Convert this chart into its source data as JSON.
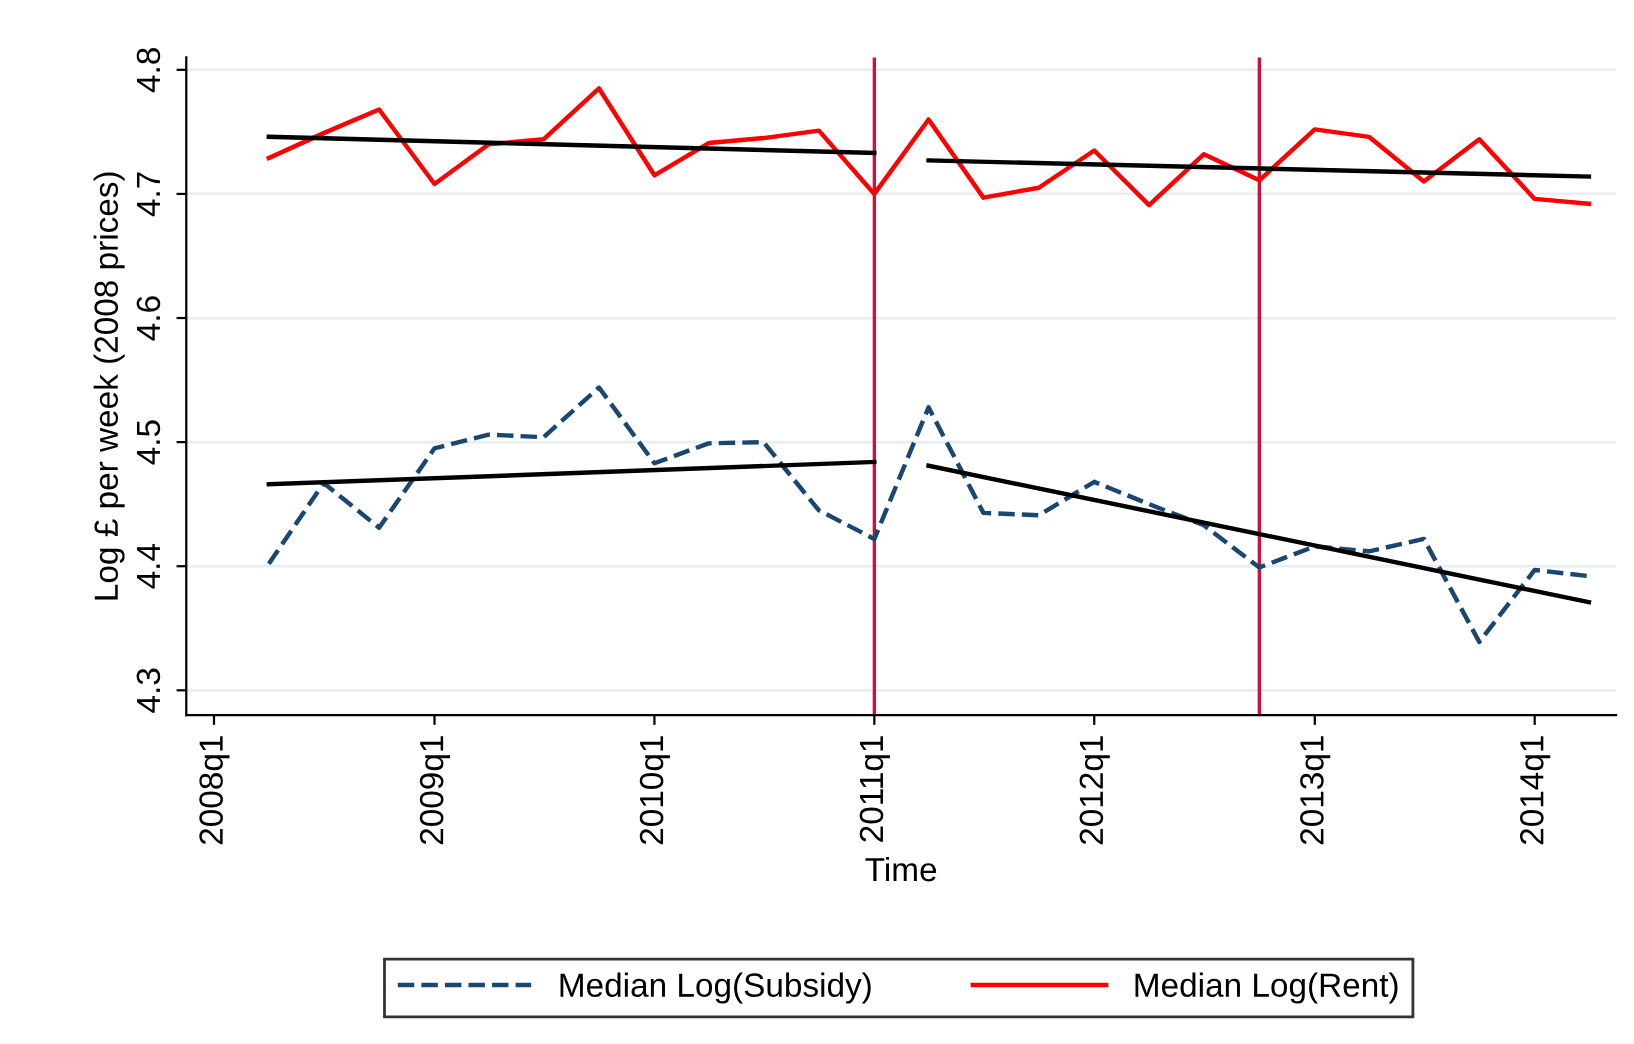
{
  "chart_data": {
    "type": "line",
    "xlabel": "Time",
    "ylabel": "Log £ per week (2008 prices)",
    "x": [
      "2008-04",
      "2008-07",
      "2008-10",
      "2009-01",
      "2009-04",
      "2009-07",
      "2009-10",
      "2010-01",
      "2010-04",
      "2010-07",
      "2010-10",
      "2011-01",
      "2011-04",
      "2011-07",
      "2011-10",
      "2012-01",
      "2012-04",
      "2012-07",
      "2012-10",
      "2013-01",
      "2013-04",
      "2013-07",
      "2013-10",
      "2014-01",
      "2014-04"
    ],
    "series": [
      {
        "name": "Median Log(Subsidy)",
        "color": "#1a476f",
        "line_style": "dashed",
        "values": [
          4.402,
          4.467,
          4.431,
          4.495,
          4.506,
          4.504,
          4.544,
          4.483,
          4.499,
          4.5,
          4.445,
          4.422,
          4.528,
          4.443,
          4.441,
          4.468,
          4.45,
          4.433,
          4.399,
          4.416,
          4.412,
          4.422,
          4.339,
          4.397,
          4.392
        ]
      },
      {
        "name": "Median Log(Rent)",
        "color": "#ff0000",
        "line_style": "solid",
        "values": [
          4.729,
          4.749,
          4.768,
          4.708,
          4.74,
          4.744,
          4.785,
          4.715,
          4.741,
          4.745,
          4.751,
          4.7,
          4.76,
          4.697,
          4.705,
          4.735,
          4.691,
          4.732,
          4.711,
          4.752,
          4.746,
          4.71,
          4.744,
          4.696,
          4.692
        ]
      },
      {
        "color": "#000000",
        "line_style": "solid",
        "x": [
          "2008-04",
          "2011-01"
        ],
        "values": [
          4.746,
          4.733
        ]
      },
      {
        "color": "#000000",
        "line_style": "solid",
        "x": [
          "2011-04",
          "2014-04"
        ],
        "values": [
          4.727,
          4.714
        ]
      },
      {
        "color": "#000000",
        "line_style": "solid",
        "x": [
          "2008-04",
          "2011-01"
        ],
        "values": [
          4.466,
          4.484
        ]
      },
      {
        "color": "#000000",
        "line_style": "solid",
        "x": [
          "2011-04",
          "2014-04"
        ],
        "values": [
          4.481,
          4.371
        ]
      }
    ],
    "xlim": [
      "2007-11-16",
      "2014-05-16"
    ],
    "xticks": [
      {
        "value": "2008-01",
        "label": "2008q1"
      },
      {
        "value": "2009-01",
        "label": "2009q1"
      },
      {
        "value": "2010-01",
        "label": "2010q1"
      },
      {
        "value": "2011-01",
        "label": "2011q1"
      },
      {
        "value": "2012-01",
        "label": "2012q1"
      },
      {
        "value": "2013-01",
        "label": "2013q1"
      },
      {
        "value": "2014-01",
        "label": "2014q1"
      }
    ],
    "ylim": [
      4.28,
      4.81
    ],
    "yticks": [
      4.3,
      4.4,
      4.5,
      4.6,
      4.7,
      4.8
    ],
    "ref_lines": [
      {
        "axis": "x",
        "value": "2011-01",
        "color": "#d0103a"
      },
      {
        "axis": "x",
        "value": "2012-10",
        "color": "#d0103a"
      }
    ],
    "grid": "y",
    "legend": "bottom"
  }
}
